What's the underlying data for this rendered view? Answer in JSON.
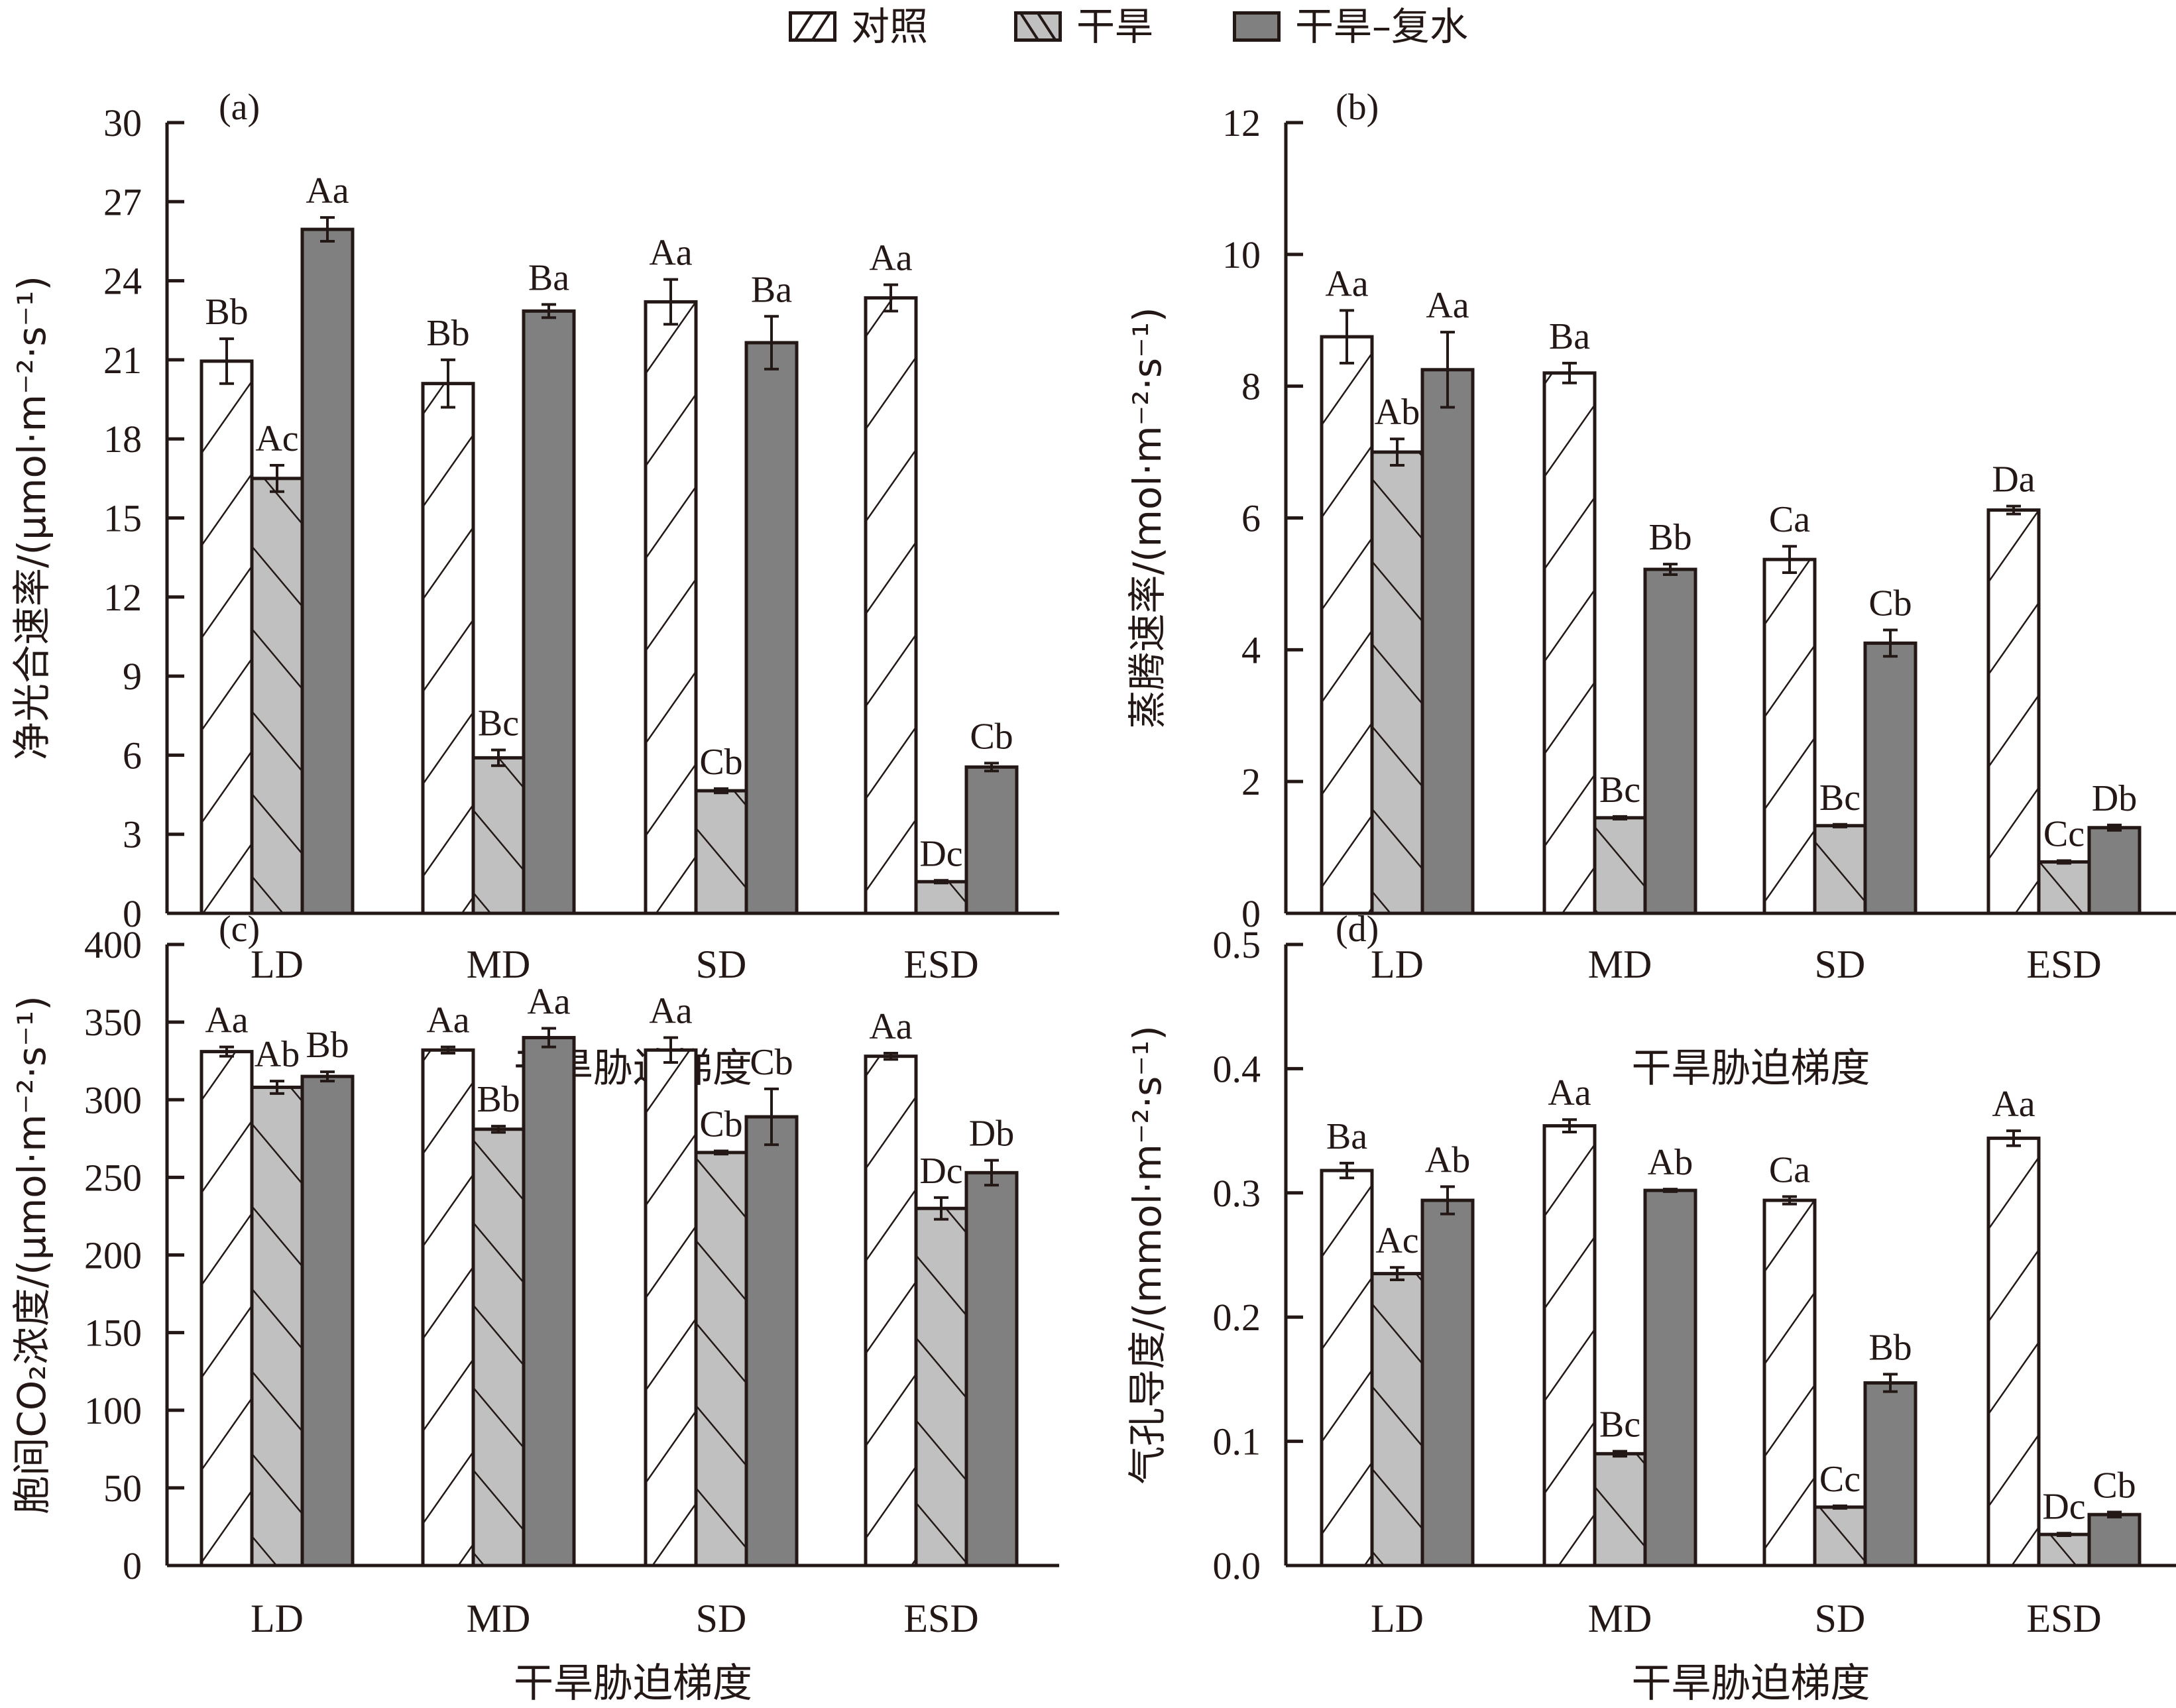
{
  "legend": [
    {
      "label": "对照",
      "pattern": "hatch-right",
      "fill": "#ffffff"
    },
    {
      "label": "干旱",
      "pattern": "hatch-left",
      "fill": "#c0c0c0"
    },
    {
      "label": "干旱–复水",
      "pattern": "solid",
      "fill": "#808080"
    }
  ],
  "colors": {
    "ink": "#231815",
    "control": "#ffffff",
    "drought": "#c0c0c0",
    "rewater": "#808080"
  },
  "chart_data": [
    {
      "panel": "(a)",
      "type": "bar",
      "title": "",
      "xlabel": "干旱胁迫梯度",
      "ylabel": "净光合速率/(μmol·m⁻²·s⁻¹)",
      "categories": [
        "LD",
        "MD",
        "SD",
        "ESD"
      ],
      "ylim": [
        0,
        30
      ],
      "yticks": [
        "0",
        "3",
        "6",
        "9",
        "12",
        "15",
        "18",
        "21",
        "24",
        "27",
        "30"
      ],
      "series": [
        {
          "name": "对照",
          "values": [
            20.95,
            20.1,
            23.2,
            23.35
          ],
          "errors": [
            0.85,
            0.9,
            0.85,
            0.5
          ],
          "labels": [
            "Bb",
            "Bb",
            "Aa",
            "Aa"
          ]
        },
        {
          "name": "干旱",
          "values": [
            16.5,
            5.9,
            4.65,
            1.2
          ],
          "errors": [
            0.5,
            0.3,
            0.08,
            0.05
          ],
          "labels": [
            "Ac",
            "Bc",
            "Cb",
            "Dc"
          ]
        },
        {
          "name": "干旱–复水",
          "values": [
            25.95,
            22.85,
            21.65,
            5.55
          ],
          "errors": [
            0.45,
            0.25,
            1.0,
            0.15
          ],
          "labels": [
            "Aa",
            "Ba",
            "Ba",
            "Cb"
          ]
        }
      ],
      "grid": false,
      "legend": "top-center"
    },
    {
      "panel": "(b)",
      "type": "bar",
      "title": "",
      "xlabel": "干旱胁迫梯度",
      "ylabel": "蒸腾速率/(mol·m⁻²·s⁻¹)",
      "categories": [
        "LD",
        "MD",
        "SD",
        "ESD"
      ],
      "ylim": [
        0,
        12
      ],
      "yticks": [
        "0",
        "2",
        "4",
        "6",
        "8",
        "10",
        "12"
      ],
      "series": [
        {
          "name": "对照",
          "values": [
            8.75,
            8.2,
            5.37,
            6.12
          ],
          "errors": [
            0.4,
            0.15,
            0.2,
            0.06
          ],
          "labels": [
            "Aa",
            "Ba",
            "Ca",
            "Da"
          ]
        },
        {
          "name": "干旱",
          "values": [
            7.0,
            1.45,
            1.33,
            0.78
          ],
          "errors": [
            0.2,
            0.02,
            0.02,
            0.02
          ],
          "labels": [
            "Ab",
            "Bc",
            "Bc",
            "Cc"
          ]
        },
        {
          "name": "干旱–复水",
          "values": [
            8.25,
            5.22,
            4.1,
            1.3
          ],
          "errors": [
            0.57,
            0.08,
            0.2,
            0.04
          ],
          "labels": [
            "Aa",
            "Bb",
            "Cb",
            "Db"
          ]
        }
      ],
      "grid": false
    },
    {
      "panel": "(c)",
      "type": "bar",
      "title": "",
      "xlabel": "干旱胁迫梯度",
      "ylabel": "胞间CO₂浓度/(μmol·m⁻²·s⁻¹)",
      "categories": [
        "LD",
        "MD",
        "SD",
        "ESD"
      ],
      "ylim": [
        0,
        400
      ],
      "yticks": [
        "0",
        "50",
        "100",
        "150",
        "200",
        "250",
        "300",
        "350",
        "400"
      ],
      "series": [
        {
          "name": "对照",
          "values": [
            331,
            332,
            332,
            328
          ],
          "errors": [
            3,
            2,
            8,
            2
          ],
          "labels": [
            "Aa",
            "Aa",
            "Aa",
            "Aa"
          ]
        },
        {
          "name": "干旱",
          "values": [
            308,
            281,
            266,
            230
          ],
          "errors": [
            4,
            2,
            1,
            7
          ],
          "labels": [
            "Ab",
            "Bb",
            "Cb",
            "Dc"
          ]
        },
        {
          "name": "干旱–复水",
          "values": [
            315,
            340,
            289,
            253
          ],
          "errors": [
            3,
            6,
            18,
            8
          ],
          "labels": [
            "Bb",
            "Aa",
            "Cb",
            "Db"
          ]
        }
      ],
      "grid": false
    },
    {
      "panel": "(d)",
      "type": "bar",
      "title": "",
      "xlabel": "干旱胁迫梯度",
      "ylabel": "气孔导度/(mmol·m⁻²·s⁻¹)",
      "categories": [
        "LD",
        "MD",
        "SD",
        "ESD"
      ],
      "ylim": [
        0,
        0.5
      ],
      "yticks": [
        "0.0",
        "0.1",
        "0.2",
        "0.3",
        "0.4",
        "0.5"
      ],
      "series": [
        {
          "name": "对照",
          "values": [
            0.318,
            0.354,
            0.294,
            0.344
          ],
          "errors": [
            0.006,
            0.005,
            0.003,
            0.006
          ],
          "labels": [
            "Ba",
            "Aa",
            "Ca",
            "Aa"
          ]
        },
        {
          "name": "干旱",
          "values": [
            0.235,
            0.09,
            0.047,
            0.025
          ],
          "errors": [
            0.005,
            0.002,
            0.001,
            0.001
          ],
          "labels": [
            "Ac",
            "Bc",
            "Cc",
            "Dc"
          ]
        },
        {
          "name": "干旱–复水",
          "values": [
            0.294,
            0.302,
            0.147,
            0.041
          ],
          "errors": [
            0.011,
            0.001,
            0.007,
            0.002
          ],
          "labels": [
            "Ab",
            "Ab",
            "Bb",
            "Cb"
          ]
        }
      ],
      "grid": false
    }
  ]
}
